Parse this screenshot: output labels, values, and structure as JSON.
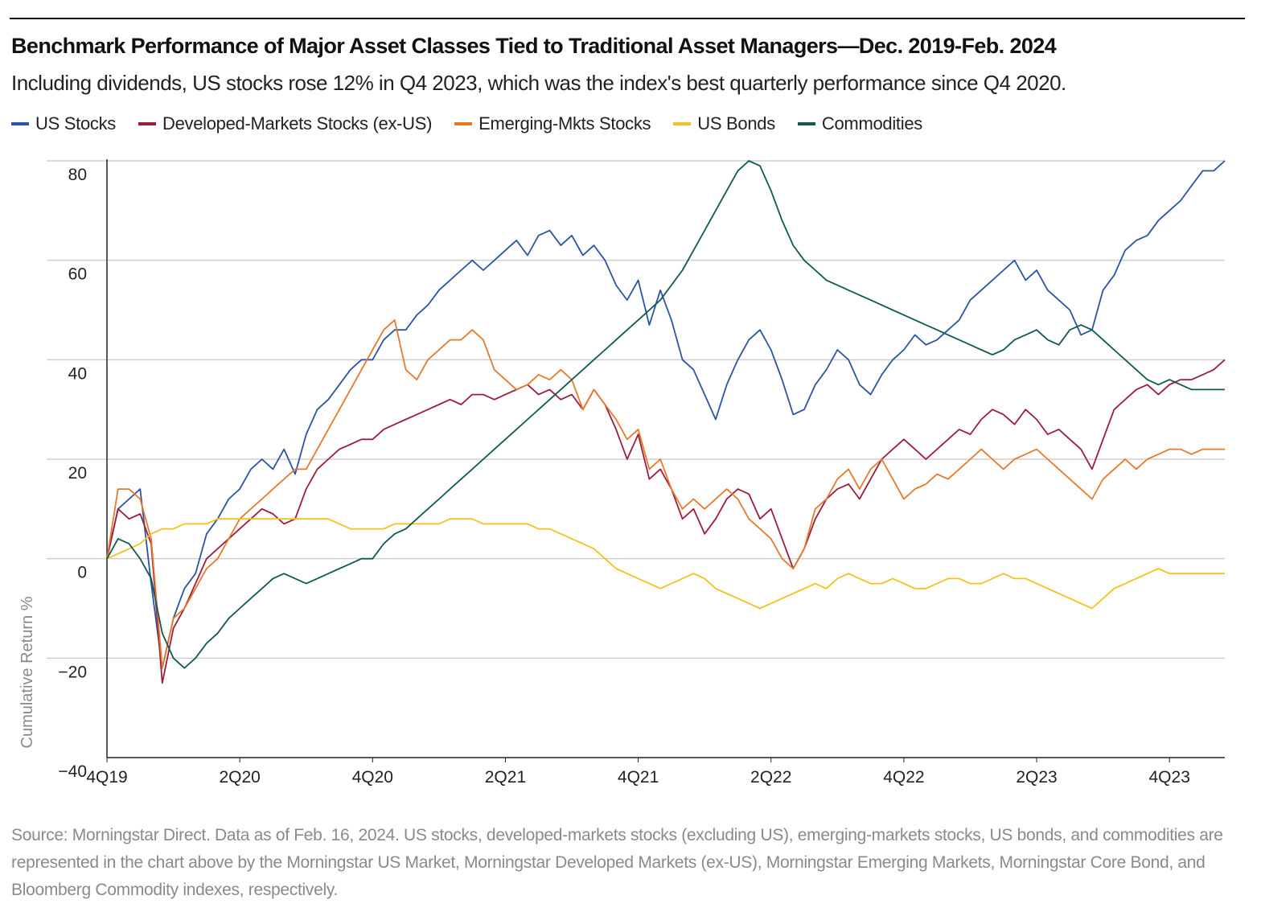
{
  "header": {
    "title": "Benchmark Performance of Major Asset Classes Tied to Traditional Asset Managers—Dec. 2019-Feb. 2024",
    "subtitle": "Including dividends, US stocks rose 12% in Q4 2023, which was the index's best quarterly performance since Q4 2020."
  },
  "footer": {
    "source": "Source: Morningstar Direct. Data as of Feb. 16, 2024. US stocks, developed-markets stocks (excluding US), emerging-markets stocks, US bonds, and commodities are represented in the chart above by the Morningstar US Market, Morningstar Developed Markets (ex-US), Morningstar Emerging Markets, Morningstar Core Bond, and Bloomberg Commodity indexes, respectively."
  },
  "chart_data": {
    "type": "line",
    "ylabel": "Cumulative Return %",
    "ylim": [
      -40,
      80
    ],
    "yticks": [
      80,
      60,
      40,
      20,
      0,
      -20,
      -40
    ],
    "ytick_labels": [
      "80",
      "60",
      "40",
      "20",
      "0",
      "−20",
      "−40"
    ],
    "xlim": [
      0,
      50.5
    ],
    "xticks": [
      {
        "label": "4Q19",
        "x": 0
      },
      {
        "label": "2Q20",
        "x": 6
      },
      {
        "label": "4Q20",
        "x": 12
      },
      {
        "label": "2Q21",
        "x": 18
      },
      {
        "label": "4Q21",
        "x": 24
      },
      {
        "label": "2Q22",
        "x": 30
      },
      {
        "label": "4Q22",
        "x": 36
      },
      {
        "label": "2Q23",
        "x": 42
      },
      {
        "label": "4Q23",
        "x": 48
      }
    ],
    "x_unit_note": "",
    "grid": "horizontal",
    "legend_position": "top-left",
    "x": [
      0,
      0.5,
      1,
      1.5,
      2,
      2.5,
      3,
      3.5,
      4,
      4.5,
      5,
      5.5,
      6,
      6.5,
      7,
      7.5,
      8,
      8.5,
      9,
      9.5,
      10,
      10.5,
      11,
      11.5,
      12,
      12.5,
      13,
      13.5,
      14,
      14.5,
      15,
      15.5,
      16,
      16.5,
      17,
      17.5,
      18,
      18.5,
      19,
      19.5,
      20,
      20.5,
      21,
      21.5,
      22,
      22.5,
      23,
      23.5,
      24,
      24.5,
      25,
      25.5,
      26,
      26.5,
      27,
      27.5,
      28,
      28.5,
      29,
      29.5,
      30,
      30.5,
      31,
      31.5,
      32,
      32.5,
      33,
      33.5,
      34,
      34.5,
      35,
      35.5,
      36,
      36.5,
      37,
      37.5,
      38,
      38.5,
      39,
      39.5,
      40,
      40.5,
      41,
      41.5,
      42,
      42.5,
      43,
      43.5,
      44,
      44.5,
      45,
      45.5,
      46,
      46.5,
      47,
      47.5,
      48,
      48.5,
      49,
      49.5,
      50,
      50.5
    ],
    "series": [
      {
        "name": "US Stocks",
        "color": "#2b54a6",
        "values": [
          0,
          10,
          12,
          14,
          -5,
          -22,
          -12,
          -6,
          -3,
          5,
          8,
          12,
          14,
          18,
          20,
          18,
          22,
          17,
          25,
          30,
          32,
          35,
          38,
          40,
          40,
          44,
          46,
          46,
          49,
          51,
          54,
          56,
          58,
          60,
          58,
          60,
          62,
          64,
          61,
          65,
          66,
          63,
          65,
          61,
          63,
          60,
          55,
          52,
          56,
          47,
          54,
          48,
          40,
          38,
          33,
          28,
          35,
          40,
          44,
          46,
          42,
          36,
          29,
          30,
          35,
          38,
          42,
          40,
          35,
          33,
          37,
          40,
          42,
          45,
          43,
          44,
          46,
          48,
          52,
          54,
          56,
          58,
          60,
          56,
          58,
          54,
          52,
          50,
          45,
          46,
          54,
          57,
          62,
          64,
          65,
          68,
          70,
          72,
          75,
          78,
          78,
          80
        ]
      },
      {
        "name": "Developed-Markets Stocks (ex-US)",
        "color": "#a01c3c",
        "values": [
          0,
          10,
          8,
          9,
          3,
          -25,
          -14,
          -10,
          -5,
          0,
          2,
          4,
          6,
          8,
          10,
          9,
          7,
          8,
          14,
          18,
          20,
          22,
          23,
          24,
          24,
          26,
          27,
          28,
          29,
          30,
          31,
          32,
          31,
          33,
          33,
          32,
          33,
          34,
          35,
          33,
          34,
          32,
          33,
          30,
          34,
          31,
          26,
          20,
          25,
          16,
          18,
          14,
          8,
          10,
          5,
          8,
          12,
          14,
          13,
          8,
          10,
          4,
          -2,
          2,
          8,
          12,
          14,
          15,
          12,
          16,
          20,
          22,
          24,
          22,
          20,
          22,
          24,
          26,
          25,
          28,
          30,
          29,
          27,
          30,
          28,
          25,
          26,
          24,
          22,
          18,
          24,
          30,
          32,
          34,
          35,
          33,
          35,
          36,
          36,
          37,
          38,
          40
        ]
      },
      {
        "name": "Emerging-Mkts Stocks",
        "color": "#e8792b",
        "values": [
          0,
          14,
          14,
          12,
          4,
          -22,
          -12,
          -10,
          -6,
          -2,
          0,
          4,
          8,
          10,
          12,
          14,
          16,
          18,
          18,
          22,
          26,
          30,
          34,
          38,
          42,
          46,
          48,
          38,
          36,
          40,
          42,
          44,
          44,
          46,
          44,
          38,
          36,
          34,
          35,
          37,
          36,
          38,
          36,
          30,
          34,
          31,
          28,
          24,
          26,
          18,
          20,
          14,
          10,
          12,
          10,
          12,
          14,
          12,
          8,
          6,
          4,
          0,
          -2,
          2,
          10,
          12,
          16,
          18,
          14,
          18,
          20,
          16,
          12,
          14,
          15,
          17,
          16,
          18,
          20,
          22,
          20,
          18,
          20,
          21,
          22,
          20,
          18,
          16,
          14,
          12,
          16,
          18,
          20,
          18,
          20,
          21,
          22,
          22,
          21,
          22,
          22,
          22
        ]
      },
      {
        "name": "US Bonds",
        "color": "#f2c21f",
        "values": [
          0,
          1,
          2,
          3,
          5,
          6,
          6,
          7,
          7,
          7,
          8,
          8,
          8,
          8,
          8,
          8,
          8,
          8,
          8,
          8,
          8,
          7,
          6,
          6,
          6,
          6,
          7,
          7,
          7,
          7,
          7,
          8,
          8,
          8,
          7,
          7,
          7,
          7,
          7,
          6,
          6,
          5,
          4,
          3,
          2,
          0,
          -2,
          -3,
          -4,
          -5,
          -6,
          -5,
          -4,
          -3,
          -4,
          -6,
          -7,
          -8,
          -9,
          -10,
          -9,
          -8,
          -7,
          -6,
          -5,
          -6,
          -4,
          -3,
          -4,
          -5,
          -5,
          -4,
          -5,
          -6,
          -6,
          -5,
          -4,
          -4,
          -5,
          -5,
          -4,
          -3,
          -4,
          -4,
          -5,
          -6,
          -7,
          -8,
          -9,
          -10,
          -8,
          -6,
          -5,
          -4,
          -3,
          -2,
          -3,
          -3,
          -3,
          -3,
          -3,
          -3
        ]
      },
      {
        "name": "Commodities",
        "color": "#0f5a55",
        "values": [
          0,
          4,
          3,
          0,
          -4,
          -15,
          -20,
          -22,
          -20,
          -17,
          -15,
          -12,
          -10,
          -8,
          -6,
          -4,
          -3,
          -4,
          -5,
          -4,
          -3,
          -2,
          -1,
          0,
          0,
          3,
          5,
          6,
          8,
          10,
          12,
          14,
          16,
          18,
          20,
          22,
          24,
          26,
          28,
          30,
          32,
          34,
          36,
          38,
          40,
          42,
          44,
          46,
          48,
          50,
          52,
          55,
          58,
          62,
          66,
          70,
          74,
          78,
          80,
          79,
          74,
          68,
          63,
          60,
          58,
          56,
          55,
          54,
          53,
          52,
          51,
          50,
          49,
          48,
          47,
          46,
          45,
          44,
          43,
          42,
          41,
          42,
          44,
          45,
          46,
          44,
          43,
          46,
          47,
          46,
          44,
          42,
          40,
          38,
          36,
          35,
          36,
          35,
          34,
          34,
          34,
          34
        ]
      }
    ]
  },
  "chart_note": ""
}
